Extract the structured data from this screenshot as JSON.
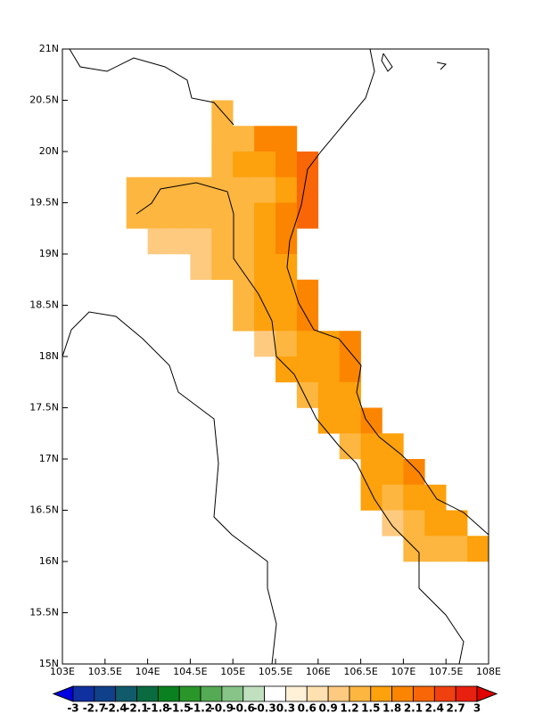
{
  "chart_data": {
    "type": "map-grid",
    "xlim": [
      103,
      108
    ],
    "ylim": [
      15,
      21
    ],
    "xticks": [
      {
        "value": 103,
        "label": "103E"
      },
      {
        "value": 103.5,
        "label": "103.5E"
      },
      {
        "value": 104,
        "label": "104E"
      },
      {
        "value": 104.5,
        "label": "104.5E"
      },
      {
        "value": 105,
        "label": "105E"
      },
      {
        "value": 105.5,
        "label": "105.5E"
      },
      {
        "value": 106,
        "label": "106E"
      },
      {
        "value": 106.5,
        "label": "106.5E"
      },
      {
        "value": 107,
        "label": "107E"
      },
      {
        "value": 107.5,
        "label": "107.5E"
      },
      {
        "value": 108,
        "label": "108E"
      }
    ],
    "yticks": [
      {
        "value": 15,
        "label": "15N"
      },
      {
        "value": 15.5,
        "label": "15.5N"
      },
      {
        "value": 16,
        "label": "16N"
      },
      {
        "value": 16.5,
        "label": "16.5N"
      },
      {
        "value": 17,
        "label": "17N"
      },
      {
        "value": 17.5,
        "label": "17.5N"
      },
      {
        "value": 18,
        "label": "18N"
      },
      {
        "value": 18.5,
        "label": "18.5N"
      },
      {
        "value": 19,
        "label": "19N"
      },
      {
        "value": 19.5,
        "label": "19.5N"
      },
      {
        "value": 20,
        "label": "20N"
      },
      {
        "value": 20.5,
        "label": "20.5N"
      },
      {
        "value": 21,
        "label": "21N"
      }
    ],
    "colorbar": {
      "levels": [
        -3,
        -2.7,
        -2.4,
        -2.1,
        -1.8,
        -1.5,
        -1.2,
        -0.9,
        -0.6,
        -0.3,
        0.3,
        0.6,
        0.9,
        1.2,
        1.5,
        1.8,
        2.1,
        2.4,
        2.7,
        3
      ],
      "colors": [
        "#0000e0",
        "#1030a0",
        "#10408a",
        "#105a6a",
        "#0a6a40",
        "#0a8020",
        "#2a962a",
        "#55aa55",
        "#88c488",
        "#c0e0c0",
        "#ffffff",
        "#fff0d8",
        "#ffe0b0",
        "#fdca80",
        "#fdb640",
        "#fda10c",
        "#fb8500",
        "#f86608",
        "#f04010",
        "#e82010",
        "#e00000"
      ]
    },
    "cells": [
      {
        "lon": [
          104.75,
          105
        ],
        "lat": [
          20.25,
          20.5
        ],
        "value": 1.4
      },
      {
        "lon": [
          104.75,
          105
        ],
        "lat": [
          20,
          20.25
        ],
        "value": 1.4
      },
      {
        "lon": [
          105,
          105.25
        ],
        "lat": [
          20,
          20.25
        ],
        "value": 1.4
      },
      {
        "lon": [
          105.25,
          105.5
        ],
        "lat": [
          20,
          20.25
        ],
        "value": 2.0
      },
      {
        "lon": [
          105.5,
          105.75
        ],
        "lat": [
          20,
          20.25
        ],
        "value": 2.0
      },
      {
        "lon": [
          104.75,
          105
        ],
        "lat": [
          19.75,
          20
        ],
        "value": 1.4
      },
      {
        "lon": [
          105,
          105.25
        ],
        "lat": [
          19.75,
          20
        ],
        "value": 1.7
      },
      {
        "lon": [
          105.25,
          105.5
        ],
        "lat": [
          19.75,
          20
        ],
        "value": 1.7
      },
      {
        "lon": [
          105.5,
          105.75
        ],
        "lat": [
          19.75,
          20
        ],
        "value": 2.0
      },
      {
        "lon": [
          105.75,
          106
        ],
        "lat": [
          19.75,
          20
        ],
        "value": 2.3
      },
      {
        "lon": [
          103.75,
          104
        ],
        "lat": [
          19.5,
          19.75
        ],
        "value": 1.4
      },
      {
        "lon": [
          104,
          104.25
        ],
        "lat": [
          19.5,
          19.75
        ],
        "value": 1.4
      },
      {
        "lon": [
          104.25,
          104.5
        ],
        "lat": [
          19.5,
          19.75
        ],
        "value": 1.4
      },
      {
        "lon": [
          104.5,
          104.75
        ],
        "lat": [
          19.5,
          19.75
        ],
        "value": 1.4
      },
      {
        "lon": [
          104.75,
          105
        ],
        "lat": [
          19.5,
          19.75
        ],
        "value": 1.4
      },
      {
        "lon": [
          105,
          105.25
        ],
        "lat": [
          19.5,
          19.75
        ],
        "value": 1.4
      },
      {
        "lon": [
          105.25,
          105.5
        ],
        "lat": [
          19.5,
          19.75
        ],
        "value": 1.4
      },
      {
        "lon": [
          105.5,
          105.75
        ],
        "lat": [
          19.5,
          19.75
        ],
        "value": 1.7
      },
      {
        "lon": [
          105.75,
          106
        ],
        "lat": [
          19.5,
          19.75
        ],
        "value": 2.3
      },
      {
        "lon": [
          103.75,
          104
        ],
        "lat": [
          19.25,
          19.5
        ],
        "value": 1.4
      },
      {
        "lon": [
          104,
          104.25
        ],
        "lat": [
          19.25,
          19.5
        ],
        "value": 1.4
      },
      {
        "lon": [
          104.25,
          104.5
        ],
        "lat": [
          19.25,
          19.5
        ],
        "value": 1.4
      },
      {
        "lon": [
          104.5,
          104.75
        ],
        "lat": [
          19.25,
          19.5
        ],
        "value": 1.4
      },
      {
        "lon": [
          104.75,
          105
        ],
        "lat": [
          19.25,
          19.5
        ],
        "value": 1.4
      },
      {
        "lon": [
          105,
          105.25
        ],
        "lat": [
          19.25,
          19.5
        ],
        "value": 1.4
      },
      {
        "lon": [
          105.25,
          105.5
        ],
        "lat": [
          19.25,
          19.5
        ],
        "value": 1.7
      },
      {
        "lon": [
          105.5,
          105.75
        ],
        "lat": [
          19.25,
          19.5
        ],
        "value": 2.0
      },
      {
        "lon": [
          105.75,
          106
        ],
        "lat": [
          19.25,
          19.5
        ],
        "value": 2.3
      },
      {
        "lon": [
          104,
          104.25
        ],
        "lat": [
          19,
          19.25
        ],
        "value": 1.1
      },
      {
        "lon": [
          104.25,
          104.5
        ],
        "lat": [
          19,
          19.25
        ],
        "value": 1.1
      },
      {
        "lon": [
          104.5,
          104.75
        ],
        "lat": [
          19,
          19.25
        ],
        "value": 1.1
      },
      {
        "lon": [
          104.75,
          105
        ],
        "lat": [
          19,
          19.25
        ],
        "value": 1.4
      },
      {
        "lon": [
          105,
          105.25
        ],
        "lat": [
          19,
          19.25
        ],
        "value": 1.4
      },
      {
        "lon": [
          105.25,
          105.5
        ],
        "lat": [
          19,
          19.25
        ],
        "value": 1.7
      },
      {
        "lon": [
          105.5,
          105.75
        ],
        "lat": [
          19,
          19.25
        ],
        "value": 2.0
      },
      {
        "lon": [
          104.5,
          104.75
        ],
        "lat": [
          18.75,
          19
        ],
        "value": 1.1
      },
      {
        "lon": [
          104.75,
          105
        ],
        "lat": [
          18.75,
          19
        ],
        "value": 1.4
      },
      {
        "lon": [
          105,
          105.25
        ],
        "lat": [
          18.75,
          19
        ],
        "value": 1.4
      },
      {
        "lon": [
          105.25,
          105.5
        ],
        "lat": [
          18.75,
          19
        ],
        "value": 1.7
      },
      {
        "lon": [
          105.5,
          105.75
        ],
        "lat": [
          18.75,
          19
        ],
        "value": 1.7
      },
      {
        "lon": [
          105,
          105.25
        ],
        "lat": [
          18.5,
          18.75
        ],
        "value": 1.4
      },
      {
        "lon": [
          105.25,
          105.5
        ],
        "lat": [
          18.5,
          18.75
        ],
        "value": 1.7
      },
      {
        "lon": [
          105.5,
          105.75
        ],
        "lat": [
          18.5,
          18.75
        ],
        "value": 1.7
      },
      {
        "lon": [
          105.75,
          106
        ],
        "lat": [
          18.5,
          18.75
        ],
        "value": 2.0
      },
      {
        "lon": [
          105,
          105.25
        ],
        "lat": [
          18.25,
          18.5
        ],
        "value": 1.4
      },
      {
        "lon": [
          105.25,
          105.5
        ],
        "lat": [
          18.25,
          18.5
        ],
        "value": 1.7
      },
      {
        "lon": [
          105.5,
          105.75
        ],
        "lat": [
          18.25,
          18.5
        ],
        "value": 1.7
      },
      {
        "lon": [
          105.75,
          106
        ],
        "lat": [
          18.25,
          18.5
        ],
        "value": 2.0
      },
      {
        "lon": [
          105.25,
          105.5
        ],
        "lat": [
          18,
          18.25
        ],
        "value": 1.1
      },
      {
        "lon": [
          105.5,
          105.75
        ],
        "lat": [
          18,
          18.25
        ],
        "value": 1.4
      },
      {
        "lon": [
          105.75,
          106
        ],
        "lat": [
          18,
          18.25
        ],
        "value": 1.7
      },
      {
        "lon": [
          106,
          106.25
        ],
        "lat": [
          18,
          18.25
        ],
        "value": 1.7
      },
      {
        "lon": [
          106.25,
          106.5
        ],
        "lat": [
          18,
          18.25
        ],
        "value": 2.0
      },
      {
        "lon": [
          105.5,
          105.75
        ],
        "lat": [
          17.75,
          18
        ],
        "value": 1.7
      },
      {
        "lon": [
          105.75,
          106
        ],
        "lat": [
          17.75,
          18
        ],
        "value": 1.7
      },
      {
        "lon": [
          106,
          106.25
        ],
        "lat": [
          17.75,
          18
        ],
        "value": 1.7
      },
      {
        "lon": [
          106.25,
          106.5
        ],
        "lat": [
          17.75,
          18
        ],
        "value": 2.0
      },
      {
        "lon": [
          105.75,
          106
        ],
        "lat": [
          17.5,
          17.75
        ],
        "value": 1.4
      },
      {
        "lon": [
          106,
          106.25
        ],
        "lat": [
          17.5,
          17.75
        ],
        "value": 1.7
      },
      {
        "lon": [
          106.25,
          106.5
        ],
        "lat": [
          17.5,
          17.75
        ],
        "value": 1.7
      },
      {
        "lon": [
          106,
          106.25
        ],
        "lat": [
          17.25,
          17.5
        ],
        "value": 1.7
      },
      {
        "lon": [
          106.25,
          106.5
        ],
        "lat": [
          17.25,
          17.5
        ],
        "value": 1.7
      },
      {
        "lon": [
          106.5,
          106.75
        ],
        "lat": [
          17.25,
          17.5
        ],
        "value": 2.0
      },
      {
        "lon": [
          106.25,
          106.5
        ],
        "lat": [
          17,
          17.25
        ],
        "value": 1.4
      },
      {
        "lon": [
          106.5,
          106.75
        ],
        "lat": [
          17,
          17.25
        ],
        "value": 1.7
      },
      {
        "lon": [
          106.75,
          107
        ],
        "lat": [
          17,
          17.25
        ],
        "value": 1.7
      },
      {
        "lon": [
          106.5,
          106.75
        ],
        "lat": [
          16.75,
          17
        ],
        "value": 1.7
      },
      {
        "lon": [
          106.75,
          107
        ],
        "lat": [
          16.75,
          17
        ],
        "value": 1.7
      },
      {
        "lon": [
          107,
          107.25
        ],
        "lat": [
          16.75,
          17
        ],
        "value": 2.0
      },
      {
        "lon": [
          106.5,
          106.75
        ],
        "lat": [
          16.5,
          16.75
        ],
        "value": 1.7
      },
      {
        "lon": [
          106.75,
          107
        ],
        "lat": [
          16.5,
          16.75
        ],
        "value": 1.4
      },
      {
        "lon": [
          107,
          107.25
        ],
        "lat": [
          16.5,
          16.75
        ],
        "value": 1.7
      },
      {
        "lon": [
          107.25,
          107.5
        ],
        "lat": [
          16.5,
          16.75
        ],
        "value": 1.7
      },
      {
        "lon": [
          106.75,
          107
        ],
        "lat": [
          16.25,
          16.5
        ],
        "value": 1.1
      },
      {
        "lon": [
          107,
          107.25
        ],
        "lat": [
          16.25,
          16.5
        ],
        "value": 1.4
      },
      {
        "lon": [
          107.25,
          107.5
        ],
        "lat": [
          16.25,
          16.5
        ],
        "value": 1.7
      },
      {
        "lon": [
          107.5,
          107.75
        ],
        "lat": [
          16.25,
          16.5
        ],
        "value": 1.7
      },
      {
        "lon": [
          107,
          107.25
        ],
        "lat": [
          16,
          16.25
        ],
        "value": 1.4
      },
      {
        "lon": [
          107.25,
          107.5
        ],
        "lat": [
          16,
          16.25
        ],
        "value": 1.4
      },
      {
        "lon": [
          107.5,
          107.75
        ],
        "lat": [
          16,
          16.25
        ],
        "value": 1.4
      },
      {
        "lon": [
          107.75,
          108
        ],
        "lat": [
          16,
          16.25
        ],
        "value": 1.7
      }
    ]
  }
}
